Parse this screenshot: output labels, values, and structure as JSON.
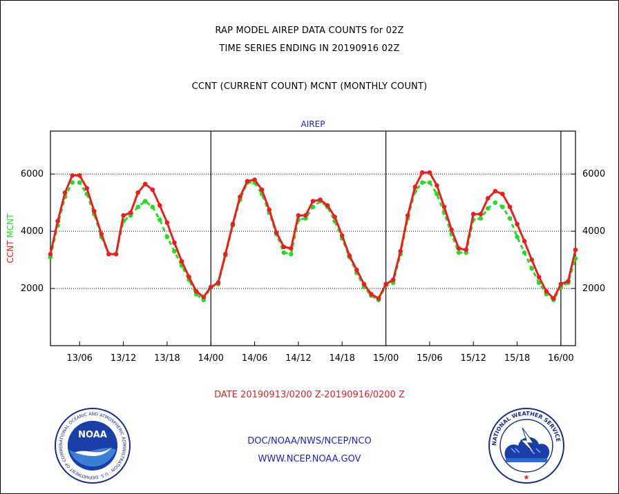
{
  "header": {
    "line1": "RAP MODEL AIREP DATA COUNTS for 02Z",
    "line2": "TIME SERIES ENDING IN 20190916 02Z",
    "line3": "CCNT (CURRENT COUNT) MCNT (MONTHLY COUNT)"
  },
  "footer": {
    "date_range": "DATE 20190913/0200 Z-20190916/0200 Z",
    "org": "DOC/NOAA/NWS/NCEP/NCO",
    "url": "WWW.NCEP.NOAA.GOV"
  },
  "logos": {
    "noaa_text": "NOAA",
    "noaa_ring": "NATIONAL OCEANIC AND ATMOSPHERIC ADMINISTRATION · U.S. DEPARTMENT OF COMMERCE ·",
    "nws_ring": "NATIONAL WEATHER SERVICE"
  },
  "colors": {
    "ccnt": "#ee1c1c",
    "mcnt": "#22dd22",
    "axis_text": "#2222cc"
  },
  "chart_data": {
    "type": "line",
    "title": "AIREP",
    "ylabel_left": [
      "CCNT",
      "MCNT"
    ],
    "ylim": [
      0,
      7500
    ],
    "yticks": [
      2000,
      4000,
      6000
    ],
    "xlim": [
      0,
      72
    ],
    "x_ticks": [
      {
        "x": 4,
        "label": "13/06"
      },
      {
        "x": 10,
        "label": "13/12"
      },
      {
        "x": 16,
        "label": "13/18"
      },
      {
        "x": 22,
        "label": "14/00"
      },
      {
        "x": 28,
        "label": "14/06"
      },
      {
        "x": 34,
        "label": "14/12"
      },
      {
        "x": 40,
        "label": "14/18"
      },
      {
        "x": 46,
        "label": "15/00"
      },
      {
        "x": 52,
        "label": "15/06"
      },
      {
        "x": 58,
        "label": "15/12"
      },
      {
        "x": 64,
        "label": "15/18"
      },
      {
        "x": 70,
        "label": "16/00"
      }
    ],
    "day_lines": [
      22,
      46,
      70
    ],
    "grid_y": [
      2000,
      4000,
      6000
    ],
    "series": [
      {
        "name": "CCNT",
        "color": "#ee1c1c",
        "values": [
          3200,
          4350,
          5350,
          5950,
          5950,
          5500,
          4700,
          3900,
          3200,
          3200,
          4550,
          4650,
          5350,
          5650,
          5450,
          4900,
          4300,
          3600,
          2950,
          2400,
          1900,
          1700,
          2050,
          2200,
          3200,
          4250,
          5200,
          5750,
          5800,
          5450,
          4750,
          3950,
          3450,
          3400,
          4550,
          4550,
          5050,
          5100,
          4900,
          4500,
          3850,
          3150,
          2650,
          2150,
          1800,
          1650,
          2150,
          2300,
          3300,
          4550,
          5550,
          6050,
          6050,
          5600,
          4850,
          4050,
          3400,
          3350,
          4600,
          4600,
          5150,
          5400,
          5300,
          4850,
          4250,
          3650,
          3000,
          2400,
          1900,
          1650,
          2150,
          2250,
          3350
        ]
      },
      {
        "name": "MCNT",
        "color": "#22dd22",
        "values": [
          3100,
          4200,
          5200,
          5700,
          5700,
          5300,
          4600,
          3800,
          3200,
          3200,
          4350,
          4550,
          4850,
          5050,
          4850,
          4400,
          3800,
          3300,
          2800,
          2300,
          1800,
          1600,
          2050,
          2150,
          3150,
          4200,
          5100,
          5700,
          5700,
          5300,
          4650,
          3900,
          3250,
          3200,
          4400,
          4450,
          4850,
          5050,
          4850,
          4350,
          3750,
          3100,
          2550,
          2050,
          1750,
          1600,
          2100,
          2200,
          3200,
          4450,
          5400,
          5700,
          5700,
          5300,
          4650,
          3900,
          3250,
          3250,
          4400,
          4450,
          4800,
          5000,
          4850,
          4450,
          3800,
          3250,
          2700,
          2200,
          1800,
          1600,
          2050,
          2200,
          3050
        ]
      }
    ]
  }
}
